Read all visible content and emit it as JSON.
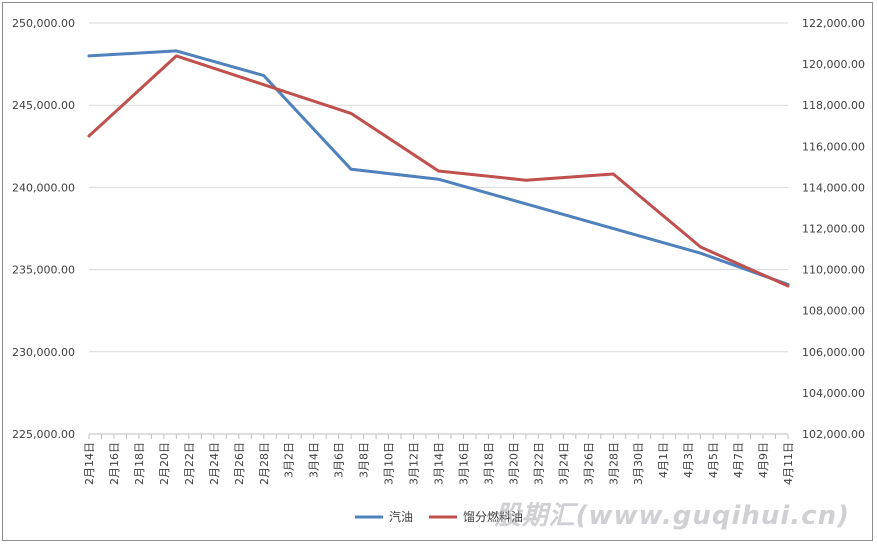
{
  "chart_data": {
    "type": "line",
    "title": "",
    "x": [
      "2月14日",
      "2月16日",
      "2月18日",
      "2月20日",
      "2月22日",
      "2月24日",
      "2月26日",
      "2月28日",
      "3月2日",
      "3月4日",
      "3月6日",
      "3月8日",
      "3月10日",
      "3月12日",
      "3月14日",
      "3月16日",
      "3月18日",
      "3月20日",
      "3月22日",
      "3月24日",
      "3月26日",
      "3月28日",
      "3月30日",
      "4月1日",
      "4月3日",
      "4月5日",
      "4月7日",
      "4月9日",
      "4月11日"
    ],
    "series": [
      {
        "name": "汽油",
        "axis": "left",
        "color": "#4f81bd",
        "points": [
          {
            "x": "2月14日",
            "y": 248000
          },
          {
            "x": "2月21日",
            "y": 248300
          },
          {
            "x": "2月28日",
            "y": 246800
          },
          {
            "x": "3月7日",
            "y": 241100
          },
          {
            "x": "3月14日",
            "y": 240500
          },
          {
            "x": "4月4日",
            "y": 236000
          },
          {
            "x": "4月11日",
            "y": 234100
          }
        ]
      },
      {
        "name": "馏分燃料油",
        "axis": "right",
        "color": "#c0504d",
        "points": [
          {
            "x": "2月14日",
            "y": 116500
          },
          {
            "x": "2月21日",
            "y": 120400
          },
          {
            "x": "2月28日",
            "y": 119000
          },
          {
            "x": "3月7日",
            "y": 117600
          },
          {
            "x": "3月14日",
            "y": 114800
          },
          {
            "x": "3月21日",
            "y": 114350
          },
          {
            "x": "3月28日",
            "y": 114650
          },
          {
            "x": "4月4日",
            "y": 111100
          },
          {
            "x": "4月11日",
            "y": 109200
          }
        ]
      }
    ],
    "y_left": {
      "ylim": [
        225000,
        250000
      ],
      "ticks": [
        "225,000.00",
        "230,000.00",
        "235,000.00",
        "240,000.00",
        "245,000.00",
        "250,000.00"
      ]
    },
    "y_right": {
      "ylim": [
        102000,
        122000
      ],
      "ticks": [
        "102,000.00",
        "104,000.00",
        "106,000.00",
        "108,000.00",
        "110,000.00",
        "112,000.00",
        "114,000.00",
        "116,000.00",
        "118,000.00",
        "120,000.00",
        "122,000.00"
      ]
    },
    "grid": true,
    "legend_position": "bottom"
  },
  "watermark": "股期汇(www.guqihui.cn)"
}
